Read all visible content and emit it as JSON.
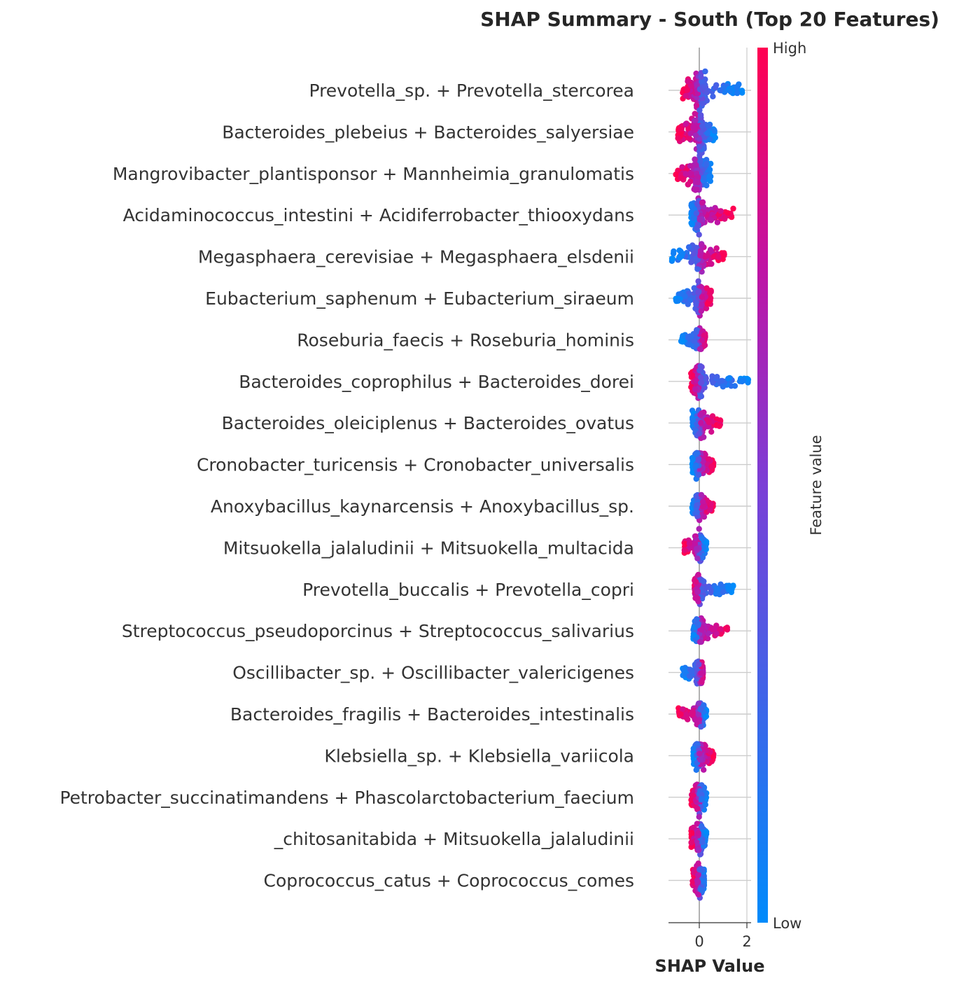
{
  "chart_data": {
    "type": "scatter",
    "subtype": "shap-beeswarm",
    "title": "SHAP Summary - South (Top 20 Features)",
    "xlabel": "SHAP Value",
    "xlim": [
      -1.3,
      2.2
    ],
    "xticks": [
      0,
      2
    ],
    "colorbar": {
      "label": "Feature value",
      "high": "High",
      "low": "Low",
      "low_color": "#008bfb",
      "high_color": "#ff0052"
    },
    "features": [
      {
        "name": "Prevotella_sp. + Prevotella_stercorea",
        "lo": -0.7,
        "hi": 1.9,
        "low_side": "right",
        "spread": 0.9
      },
      {
        "name": "Bacteroides_plebeius + Bacteroides_salyersiae",
        "lo": -0.9,
        "hi": 0.7,
        "low_side": "right",
        "spread": 1.0
      },
      {
        "name": "Mangrovibacter_plantisponsor + Mannheimia_granulomatis",
        "lo": -1.0,
        "hi": 0.5,
        "low_side": "right",
        "spread": 0.9
      },
      {
        "name": "Acidaminococcus_intestini + Acidiferrobacter_thiooxydans",
        "lo": -0.35,
        "hi": 1.45,
        "low_side": "left",
        "spread": 0.8
      },
      {
        "name": "Megasphaera_cerevisiae + Megasphaera_elsdenii",
        "lo": -1.2,
        "hi": 1.05,
        "low_side": "left",
        "spread": 0.7
      },
      {
        "name": "Eubacterium_saphenum + Eubacterium_siraeum",
        "lo": -1.05,
        "hi": 0.5,
        "low_side": "left",
        "spread": 0.7
      },
      {
        "name": "Roseburia_faecis + Roseburia_hominis",
        "lo": -0.8,
        "hi": 0.25,
        "low_side": "left",
        "spread": 0.5
      },
      {
        "name": "Bacteroides_coprophilus + Bacteroides_dorei",
        "lo": -0.35,
        "hi": 2.15,
        "low_side": "right",
        "spread": 0.7
      },
      {
        "name": "Bacteroides_oleiciplenus + Bacteroides_ovatus",
        "lo": -0.3,
        "hi": 0.9,
        "low_side": "left",
        "spread": 0.6
      },
      {
        "name": "Cronobacter_turicensis + Cronobacter_universalis",
        "lo": -0.3,
        "hi": 0.6,
        "low_side": "left",
        "spread": 0.6
      },
      {
        "name": "Anoxybacillus_kaynarcensis + Anoxybacillus_sp.",
        "lo": -0.3,
        "hi": 0.6,
        "low_side": "left",
        "spread": 0.6
      },
      {
        "name": "Mitsuokella_jalaludinii + Mitsuokella_multacida",
        "lo": -0.65,
        "hi": 0.3,
        "low_side": "right",
        "spread": 0.6
      },
      {
        "name": "Prevotella_buccalis + Prevotella_copri",
        "lo": -0.2,
        "hi": 1.45,
        "low_side": "right",
        "spread": 0.6
      },
      {
        "name": "Streptococcus_pseudoporcinus + Streptococcus_salivarius",
        "lo": -0.25,
        "hi": 1.2,
        "low_side": "left",
        "spread": 0.6
      },
      {
        "name": "Oscillibacter_sp. + Oscillibacter_valericigenes",
        "lo": -0.7,
        "hi": 0.15,
        "low_side": "left",
        "spread": 0.5
      },
      {
        "name": "Bacteroides_fragilis + Bacteroides_intestinalis",
        "lo": -0.9,
        "hi": 0.3,
        "low_side": "right",
        "spread": 0.5
      },
      {
        "name": "Klebsiella_sp. + Klebsiella_variicola",
        "lo": -0.25,
        "hi": 0.6,
        "low_side": "left",
        "spread": 0.6
      },
      {
        "name": "Petrobacter_succinatimandens + Phascolarctobacterium_faecium",
        "lo": -0.35,
        "hi": 0.3,
        "low_side": "right",
        "spread": 0.7
      },
      {
        "name": "_chitosanitabida + Mitsuokella_jalaludinii",
        "lo": -0.35,
        "hi": 0.3,
        "low_side": "right",
        "spread": 0.7
      },
      {
        "name": "Coprococcus_catus + Coprococcus_comes",
        "lo": -0.3,
        "hi": 0.2,
        "low_side": "right",
        "spread": 0.7
      }
    ]
  }
}
